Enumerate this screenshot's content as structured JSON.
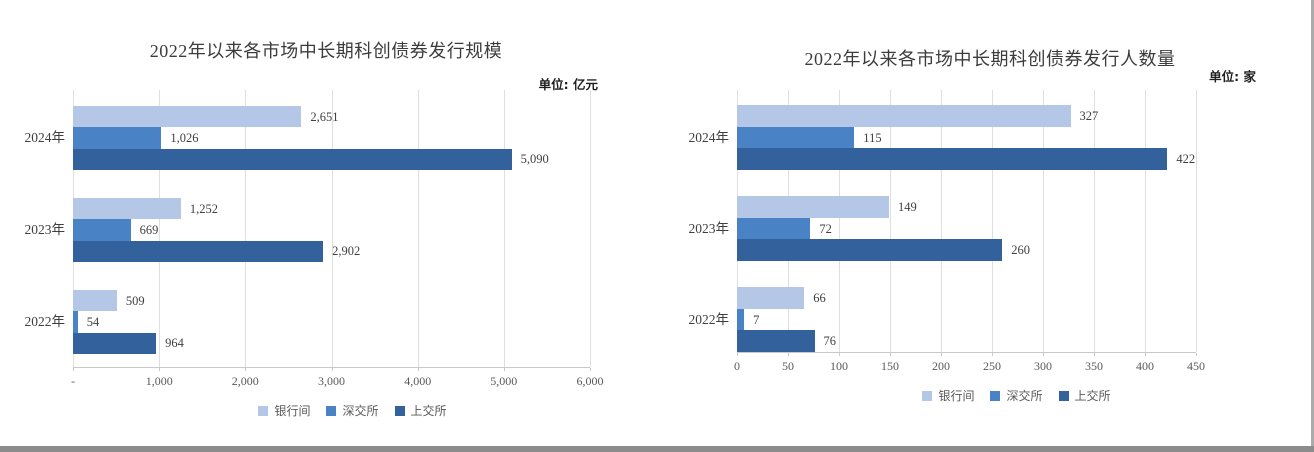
{
  "page": {
    "background": "#ffffff",
    "right_edge_color": "#ababab",
    "bottom_edge_color": "#8c8c8c"
  },
  "palette": {
    "series_light": "#B4C7E7",
    "series_mid": "#4A82C6",
    "series_dark": "#33619B",
    "gridline": "#dfdfdf",
    "axis_line": "#c9c9c9",
    "tick_text": "#595959",
    "title_text": "#3c3c3c"
  },
  "chart_data": [
    {
      "type": "bar",
      "orientation": "horizontal",
      "title": "2022年以来各市场中长期科创债券发行规模",
      "unit_label": "单位: 亿元",
      "categories": [
        "2024年",
        "2023年",
        "2022年"
      ],
      "series": [
        {
          "name": "银行间",
          "color": "#B4C7E7",
          "values": [
            2651,
            1252,
            509
          ]
        },
        {
          "name": "深交所",
          "color": "#4A82C6",
          "values": [
            1026,
            669,
            54
          ]
        },
        {
          "name": "上交所",
          "color": "#33619B",
          "values": [
            5090,
            2902,
            964
          ]
        }
      ],
      "xlim": [
        0,
        6000
      ],
      "x_ticks": [
        {
          "value": 0,
          "label": "-"
        },
        {
          "value": 1000,
          "label": "1,000"
        },
        {
          "value": 2000,
          "label": "2,000"
        },
        {
          "value": 3000,
          "label": "3,000"
        },
        {
          "value": 4000,
          "label": "4,000"
        },
        {
          "value": 5000,
          "label": "5,000"
        },
        {
          "value": 6000,
          "label": "6,000"
        }
      ],
      "grid": "vertical",
      "legend_position": "bottom",
      "value_labels": "outside-end"
    },
    {
      "type": "bar",
      "orientation": "horizontal",
      "title": "2022年以来各市场中长期科创债券发行人数量",
      "unit_label": "单位: 家",
      "categories": [
        "2024年",
        "2023年",
        "2022年"
      ],
      "series": [
        {
          "name": "银行间",
          "color": "#B4C7E7",
          "values": [
            327,
            149,
            66
          ]
        },
        {
          "name": "深交所",
          "color": "#4A82C6",
          "values": [
            115,
            72,
            7
          ]
        },
        {
          "name": "上交所",
          "color": "#33619B",
          "values": [
            422,
            260,
            76
          ]
        }
      ],
      "xlim": [
        0,
        450
      ],
      "x_ticks": [
        {
          "value": 0,
          "label": "0"
        },
        {
          "value": 50,
          "label": "50"
        },
        {
          "value": 100,
          "label": "100"
        },
        {
          "value": 150,
          "label": "150"
        },
        {
          "value": 200,
          "label": "200"
        },
        {
          "value": 250,
          "label": "250"
        },
        {
          "value": 300,
          "label": "300"
        },
        {
          "value": 350,
          "label": "350"
        },
        {
          "value": 400,
          "label": "400"
        },
        {
          "value": 450,
          "label": "450"
        }
      ],
      "grid": "vertical",
      "legend_position": "bottom",
      "value_labels": "outside-end"
    }
  ]
}
